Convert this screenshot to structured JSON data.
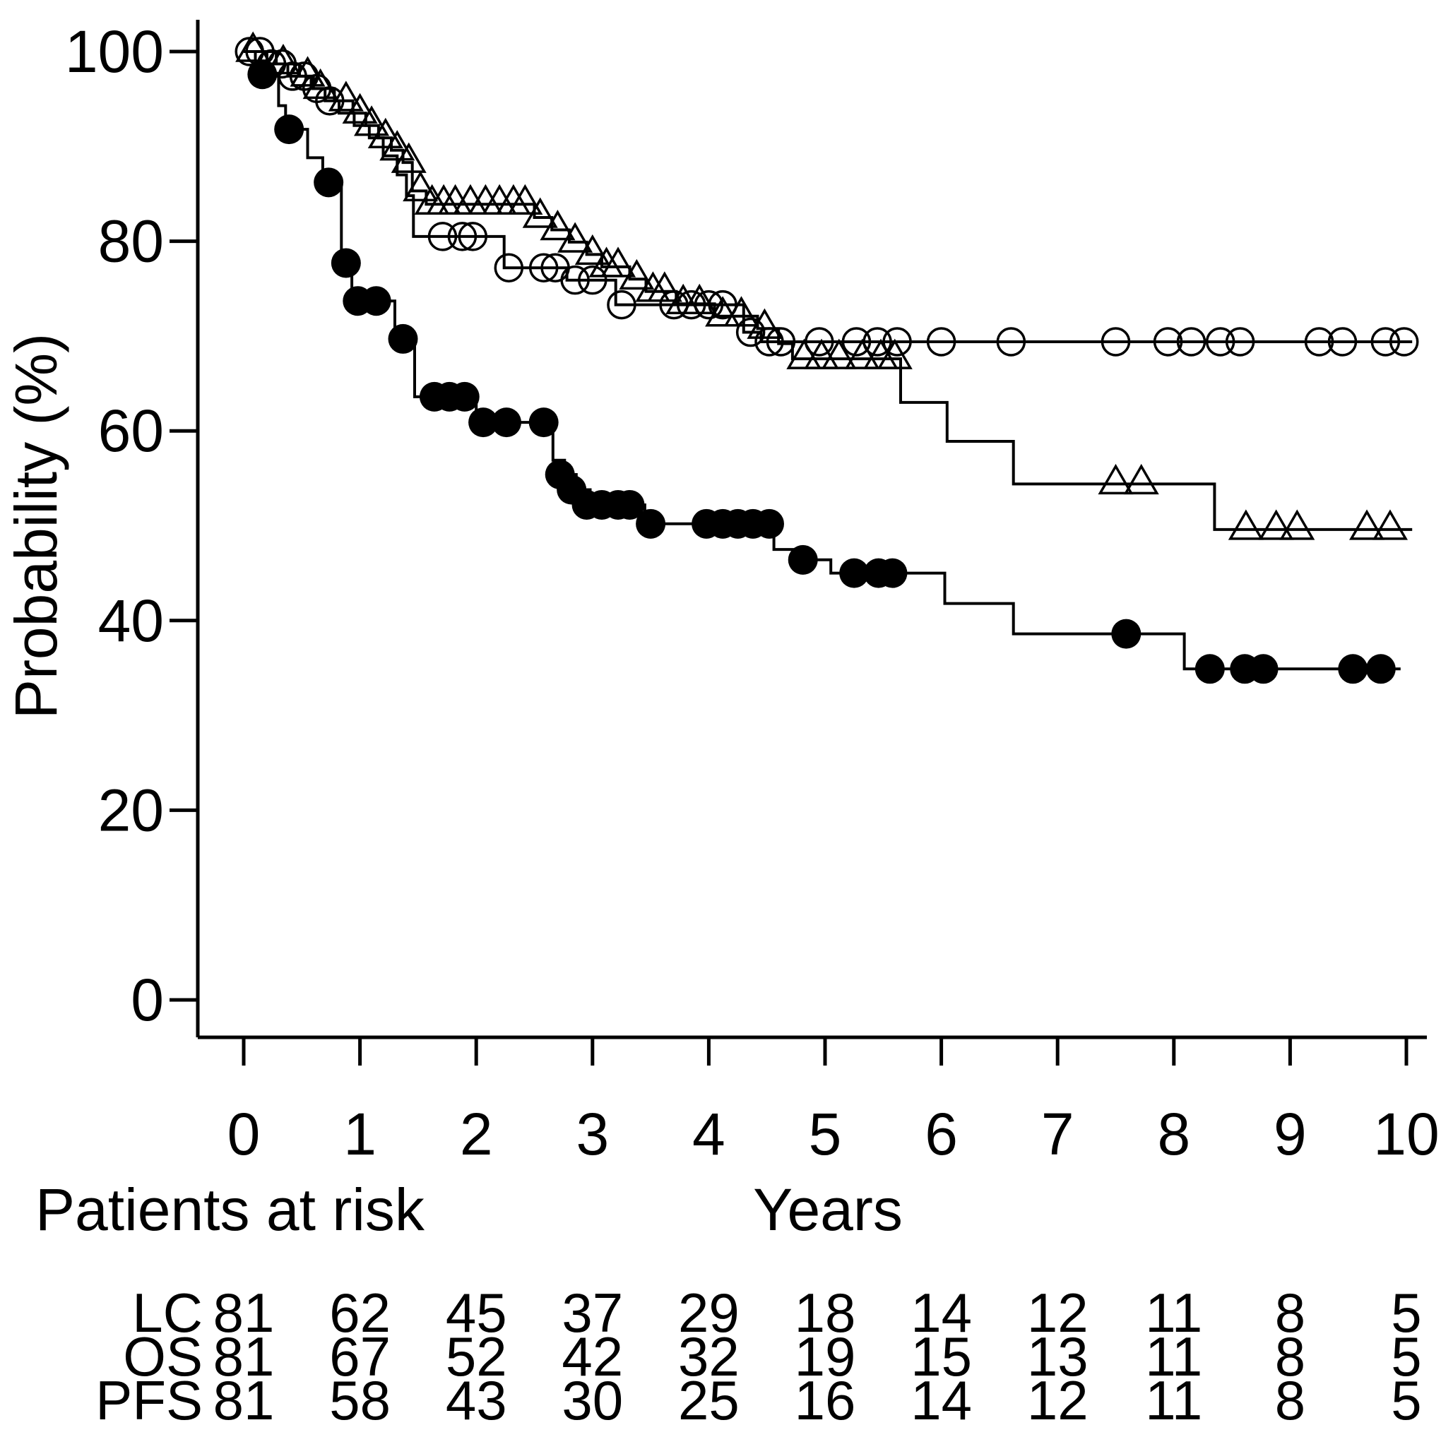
{
  "figure": {
    "background": "#ffffff",
    "ink": "#000000"
  },
  "chart_data": {
    "type": "line",
    "subtype": "kaplan-meier-step-curves",
    "title": "",
    "xlabel": "Years",
    "ylabel": "Probability (%)",
    "xlim": [
      0,
      10.3
    ],
    "ylim": [
      0,
      100
    ],
    "xticks": [
      0,
      1,
      2,
      3,
      4,
      5,
      6,
      7,
      8,
      9,
      10
    ],
    "yticks": [
      0,
      20,
      40,
      60,
      80,
      100
    ],
    "grid": false,
    "legend_position": "none",
    "series": [
      {
        "name": "LC",
        "marker": "open-circle",
        "end": 10.05,
        "steps": [
          [
            0,
            100
          ],
          [
            0.2,
            98.7
          ],
          [
            0.38,
            97.4
          ],
          [
            0.58,
            96.1
          ],
          [
            0.7,
            94.8
          ],
          [
            0.82,
            93.5
          ],
          [
            0.95,
            92.2
          ],
          [
            1.08,
            90.9
          ],
          [
            1.2,
            89.0
          ],
          [
            1.32,
            87.0
          ],
          [
            1.4,
            84.8
          ],
          [
            1.46,
            80.5
          ],
          [
            2.24,
            77.2
          ],
          [
            2.78,
            75.9
          ],
          [
            3.2,
            73.3
          ],
          [
            4.3,
            70.4
          ],
          [
            4.45,
            69.4
          ]
        ],
        "censors": [
          [
            0.05,
            100
          ],
          [
            0.14,
            100
          ],
          [
            0.24,
            98.7
          ],
          [
            0.33,
            98.7
          ],
          [
            0.42,
            97.4
          ],
          [
            0.52,
            97.4
          ],
          [
            0.63,
            96.1
          ],
          [
            0.74,
            94.8
          ],
          [
            1.71,
            80.5
          ],
          [
            1.88,
            80.5
          ],
          [
            1.97,
            80.5
          ],
          [
            2.28,
            77.2
          ],
          [
            2.58,
            77.2
          ],
          [
            2.68,
            77.2
          ],
          [
            2.85,
            75.9
          ],
          [
            3.0,
            75.9
          ],
          [
            3.25,
            73.3
          ],
          [
            3.7,
            73.3
          ],
          [
            3.85,
            73.3
          ],
          [
            4.0,
            73.3
          ],
          [
            4.12,
            73.3
          ],
          [
            4.36,
            70.4
          ],
          [
            4.52,
            69.4
          ],
          [
            4.62,
            69.4
          ],
          [
            4.95,
            69.4
          ],
          [
            5.27,
            69.4
          ],
          [
            5.45,
            69.4
          ],
          [
            5.62,
            69.4
          ],
          [
            6.0,
            69.4
          ],
          [
            6.6,
            69.4
          ],
          [
            7.5,
            69.4
          ],
          [
            7.95,
            69.4
          ],
          [
            8.15,
            69.4
          ],
          [
            8.4,
            69.4
          ],
          [
            8.57,
            69.4
          ],
          [
            9.25,
            69.4
          ],
          [
            9.45,
            69.4
          ],
          [
            9.82,
            69.4
          ],
          [
            9.98,
            69.4
          ]
        ]
      },
      {
        "name": "OS",
        "marker": "open-triangle",
        "end": 10.05,
        "steps": [
          [
            0,
            100
          ],
          [
            0.28,
            98.7
          ],
          [
            0.48,
            97.4
          ],
          [
            0.6,
            96.1
          ],
          [
            0.78,
            94.8
          ],
          [
            0.94,
            93.5
          ],
          [
            1.05,
            92.2
          ],
          [
            1.16,
            90.9
          ],
          [
            1.27,
            89.6
          ],
          [
            1.37,
            88.3
          ],
          [
            1.45,
            85.3
          ],
          [
            1.57,
            83.9
          ],
          [
            2.5,
            82.5
          ],
          [
            2.65,
            81.2
          ],
          [
            2.8,
            79.9
          ],
          [
            2.95,
            78.6
          ],
          [
            3.08,
            77.3
          ],
          [
            3.32,
            76.0
          ],
          [
            3.46,
            74.7
          ],
          [
            3.72,
            73.4
          ],
          [
            4.05,
            72.1
          ],
          [
            4.42,
            70.8
          ],
          [
            4.6,
            69.2
          ],
          [
            4.72,
            67.6
          ],
          [
            5.65,
            63.0
          ],
          [
            6.05,
            58.9
          ],
          [
            6.62,
            54.4
          ],
          [
            8.35,
            49.6
          ]
        ],
        "censors": [
          [
            0.08,
            100
          ],
          [
            0.34,
            98.7
          ],
          [
            0.55,
            97.4
          ],
          [
            0.66,
            96.1
          ],
          [
            0.88,
            94.8
          ],
          [
            1.0,
            93.5
          ],
          [
            1.1,
            92.2
          ],
          [
            1.22,
            90.9
          ],
          [
            1.32,
            89.6
          ],
          [
            1.42,
            88.3
          ],
          [
            1.52,
            85.3
          ],
          [
            1.62,
            83.9
          ],
          [
            1.72,
            83.9
          ],
          [
            1.82,
            83.9
          ],
          [
            1.95,
            83.9
          ],
          [
            2.08,
            83.9
          ],
          [
            2.2,
            83.9
          ],
          [
            2.32,
            83.9
          ],
          [
            2.42,
            83.9
          ],
          [
            2.55,
            82.5
          ],
          [
            2.7,
            81.2
          ],
          [
            2.85,
            79.9
          ],
          [
            3.0,
            78.6
          ],
          [
            3.12,
            77.3
          ],
          [
            3.22,
            77.3
          ],
          [
            3.38,
            76.0
          ],
          [
            3.52,
            74.7
          ],
          [
            3.62,
            74.7
          ],
          [
            3.78,
            73.4
          ],
          [
            3.92,
            73.4
          ],
          [
            4.12,
            72.1
          ],
          [
            4.28,
            72.1
          ],
          [
            4.48,
            70.8
          ],
          [
            4.82,
            67.6
          ],
          [
            4.97,
            67.6
          ],
          [
            5.12,
            67.6
          ],
          [
            5.32,
            67.6
          ],
          [
            5.48,
            67.6
          ],
          [
            5.6,
            67.6
          ],
          [
            7.5,
            54.4
          ],
          [
            7.72,
            54.4
          ],
          [
            8.62,
            49.6
          ],
          [
            8.88,
            49.6
          ],
          [
            9.06,
            49.6
          ],
          [
            9.66,
            49.6
          ],
          [
            9.86,
            49.6
          ]
        ]
      },
      {
        "name": "PFS",
        "marker": "filled-circle",
        "end": 9.95,
        "steps": [
          [
            0,
            100
          ],
          [
            0.1,
            97.6
          ],
          [
            0.3,
            94.3
          ],
          [
            0.36,
            91.8
          ],
          [
            0.55,
            88.8
          ],
          [
            0.68,
            86.2
          ],
          [
            0.84,
            77.7
          ],
          [
            0.93,
            73.7
          ],
          [
            1.3,
            69.7
          ],
          [
            1.47,
            63.6
          ],
          [
            2.0,
            60.9
          ],
          [
            2.66,
            56.9
          ],
          [
            2.76,
            55.4
          ],
          [
            2.86,
            53.8
          ],
          [
            2.98,
            52.2
          ],
          [
            3.45,
            50.2
          ],
          [
            4.56,
            47.5
          ],
          [
            4.74,
            46.4
          ],
          [
            5.05,
            45.0
          ],
          [
            6.03,
            41.8
          ],
          [
            6.62,
            38.6
          ],
          [
            8.09,
            34.9
          ]
        ],
        "censors": [
          [
            0.16,
            97.6
          ],
          [
            0.39,
            91.8
          ],
          [
            0.73,
            86.2
          ],
          [
            0.88,
            77.7
          ],
          [
            0.98,
            73.7
          ],
          [
            1.14,
            73.7
          ],
          [
            1.37,
            69.7
          ],
          [
            1.64,
            63.6
          ],
          [
            1.77,
            63.6
          ],
          [
            1.9,
            63.6
          ],
          [
            2.06,
            60.9
          ],
          [
            2.26,
            60.9
          ],
          [
            2.58,
            60.9
          ],
          [
            2.72,
            55.4
          ],
          [
            2.82,
            53.8
          ],
          [
            2.95,
            52.2
          ],
          [
            3.08,
            52.2
          ],
          [
            3.22,
            52.2
          ],
          [
            3.32,
            52.2
          ],
          [
            3.5,
            50.2
          ],
          [
            3.98,
            50.2
          ],
          [
            4.12,
            50.2
          ],
          [
            4.25,
            50.2
          ],
          [
            4.38,
            50.2
          ],
          [
            4.52,
            50.2
          ],
          [
            4.81,
            46.4
          ],
          [
            5.25,
            45.0
          ],
          [
            5.46,
            45.0
          ],
          [
            5.58,
            45.0
          ],
          [
            7.59,
            38.6
          ],
          [
            8.31,
            34.9
          ],
          [
            8.61,
            34.9
          ],
          [
            8.77,
            34.9
          ],
          [
            9.54,
            34.9
          ],
          [
            9.78,
            34.9
          ]
        ]
      }
    ],
    "risk_table": {
      "title": "Patients at risk",
      "years": [
        0,
        1,
        2,
        3,
        4,
        5,
        6,
        7,
        8,
        9,
        10
      ],
      "rows": [
        {
          "label": "LC",
          "counts": [
            81,
            62,
            45,
            37,
            29,
            18,
            14,
            12,
            11,
            8,
            5
          ]
        },
        {
          "label": "OS",
          "counts": [
            81,
            67,
            52,
            42,
            32,
            19,
            15,
            13,
            11,
            8,
            5
          ]
        },
        {
          "label": "PFS",
          "counts": [
            81,
            58,
            43,
            30,
            25,
            16,
            14,
            12,
            11,
            8,
            5
          ]
        }
      ]
    }
  }
}
